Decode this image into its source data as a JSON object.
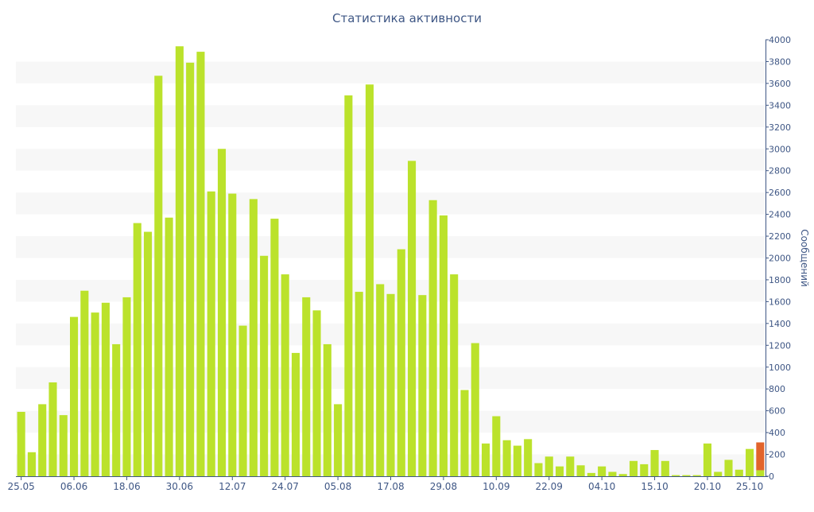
{
  "chart_data": {
    "type": "bar",
    "title": "Статистика активности",
    "ylabel": "Сообщений",
    "xlabel": "",
    "ylim": [
      0,
      4000
    ],
    "y_axis_position": "right",
    "y_ticks": [
      0,
      200,
      400,
      600,
      800,
      1000,
      1200,
      1400,
      1600,
      1800,
      2000,
      2200,
      2400,
      2600,
      2800,
      3000,
      3200,
      3400,
      3600,
      3800,
      4000
    ],
    "x_tick_labels": [
      "25.05",
      "06.06",
      "18.06",
      "30.06",
      "12.07",
      "24.07",
      "05.08",
      "17.08",
      "29.08",
      "10.09",
      "22.09",
      "04.10",
      "15.10",
      "20.10",
      "25.10"
    ],
    "x_tick_positions": [
      0,
      5,
      10,
      15,
      20,
      25,
      30,
      35,
      40,
      45,
      50,
      55,
      60,
      65,
      69
    ],
    "grid": "horizontal-bands",
    "colors": {
      "bar": "#bbe22b",
      "highlight": "#e2642b",
      "band": "#f7f7f7",
      "axis": "#3f5785",
      "title": "#3f5785"
    },
    "values": [
      590,
      220,
      660,
      860,
      560,
      1460,
      1700,
      1500,
      1590,
      1210,
      1640,
      2320,
      2240,
      3670,
      2370,
      3940,
      3790,
      3890,
      2610,
      3000,
      2590,
      1380,
      2540,
      2020,
      2360,
      1850,
      1130,
      1640,
      1520,
      1210,
      660,
      3490,
      1690,
      3590,
      1760,
      1670,
      2080,
      2890,
      1660,
      2530,
      2390,
      1850,
      790,
      1220,
      300,
      550,
      330,
      280,
      340,
      120,
      180,
      90,
      180,
      100,
      30,
      90,
      40,
      20,
      140,
      110,
      240,
      140,
      10,
      10,
      10,
      300,
      40,
      150,
      60,
      250,
      310
    ],
    "highlight_index": 70,
    "highlight_split_value": 55
  }
}
